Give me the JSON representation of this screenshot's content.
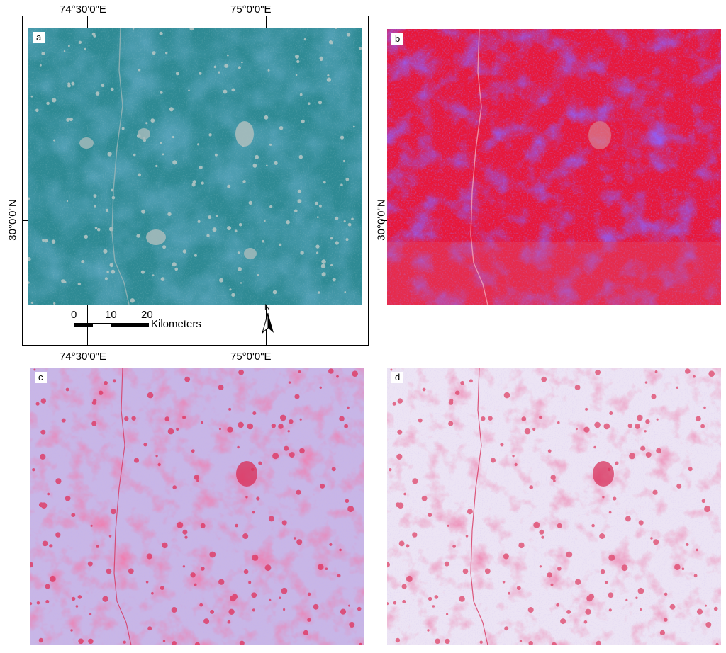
{
  "coordinates": {
    "lon_left": "74°30'0\"E",
    "lon_right": "75°0'0\"E",
    "lat": "30°0'0\"N"
  },
  "panels": {
    "a": {
      "label": "a",
      "color": "#2e8a94"
    },
    "b": {
      "label": "b",
      "color": "#e8173a"
    },
    "c": {
      "label": "c",
      "color": "#c8b6e6"
    },
    "d": {
      "label": "d",
      "color": "#ece4f4"
    }
  },
  "scale_bar": {
    "tick_0": "0",
    "tick_10": "10",
    "tick_20": "20",
    "units": "Kilometers"
  },
  "north_arrow": {
    "label": "N",
    "icon": "north-arrow-icon"
  }
}
